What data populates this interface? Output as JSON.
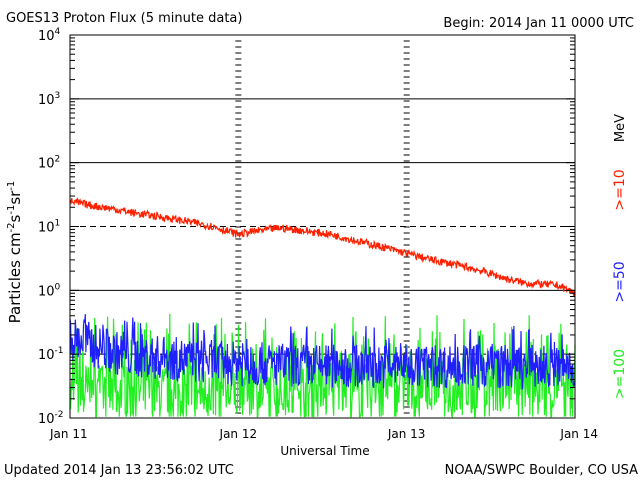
{
  "header": {
    "title": "GOES13 Proton Flux (5 minute data)",
    "begin": "Begin: 2014 Jan 11 0000 UTC"
  },
  "footer": {
    "updated": "Updated 2014 Jan 13 23:56:02 UTC",
    "credit": "NOAA/SWPC Boulder, CO USA"
  },
  "chart_data": {
    "type": "line",
    "title": "GOES13 Proton Flux (5 minute data)",
    "xlabel": "Universal Time",
    "ylabel": "Particles cm-2s-1sr-1",
    "y_scale": "log",
    "ylim": [
      0.01,
      10000
    ],
    "xlim": [
      0,
      3
    ],
    "x_ticks": [
      {
        "value": 0,
        "label": "Jan 11"
      },
      {
        "value": 1,
        "label": "Jan 12"
      },
      {
        "value": 2,
        "label": "Jan 13"
      },
      {
        "value": 3,
        "label": "Jan 14"
      }
    ],
    "y_ticks": [
      {
        "value": 0.01,
        "base": "10",
        "exp": "-2"
      },
      {
        "value": 0.1,
        "base": "10",
        "exp": "-1"
      },
      {
        "value": 1,
        "base": "10",
        "exp": "0"
      },
      {
        "value": 10,
        "base": "10",
        "exp": "1"
      },
      {
        "value": 100,
        "base": "10",
        "exp": "2"
      },
      {
        "value": 1000,
        "base": "10",
        "exp": "3"
      },
      {
        "value": 10000,
        "base": "10",
        "exp": "4"
      }
    ],
    "unit_label": "MeV",
    "series": [
      {
        "name": ">=10",
        "color": "#ff2000",
        "x": [
          0,
          0.1,
          0.25,
          0.4,
          0.55,
          0.7,
          0.85,
          1.0,
          1.1,
          1.25,
          1.4,
          1.55,
          1.7,
          1.85,
          2.0,
          2.15,
          2.3,
          2.45,
          2.6,
          2.7,
          2.8,
          2.9,
          3.0
        ],
        "values": [
          25,
          22,
          19,
          16,
          14,
          12,
          10,
          7.5,
          8.5,
          9.5,
          8.5,
          7.5,
          6,
          4.8,
          3.8,
          3.0,
          2.5,
          2.0,
          1.5,
          1.3,
          1.25,
          1.2,
          0.9
        ]
      },
      {
        "name": ">=50",
        "color": "#2020ff",
        "x": [
          0,
          0.1,
          0.2,
          0.3,
          0.5,
          0.7,
          1.0,
          1.5,
          2.0,
          2.5,
          3.0
        ],
        "values": [
          0.18,
          0.15,
          0.12,
          0.1,
          0.09,
          0.08,
          0.07,
          0.065,
          0.065,
          0.065,
          0.06
        ]
      },
      {
        "name": ">=100",
        "color": "#22ee22",
        "x": [
          0,
          0.5,
          1.0,
          1.5,
          2.0,
          2.5,
          3.0
        ],
        "values": [
          0.025,
          0.025,
          0.025,
          0.025,
          0.025,
          0.025,
          0.025
        ]
      }
    ],
    "grid": true,
    "legend": "right-vertical"
  }
}
